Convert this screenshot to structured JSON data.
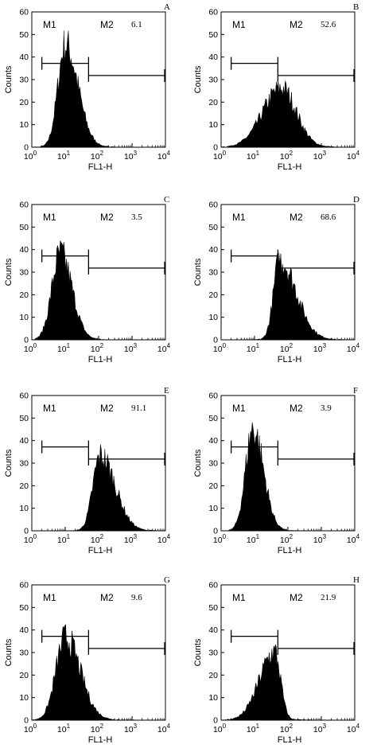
{
  "chart_data": [
    {
      "type": "area",
      "panel": "A",
      "ylabel": "Counts",
      "xlabel": "FL1-H",
      "xscale": "log",
      "xlim": [
        1,
        10000
      ],
      "ylim": [
        0,
        60
      ],
      "xticks": [
        "10",
        "10",
        "10",
        "10",
        "10"
      ],
      "xtick_exponents": [
        "0",
        "1",
        "2",
        "3",
        "4"
      ],
      "yticks": [
        "0",
        "10",
        "20",
        "30",
        "40",
        "50",
        "60"
      ],
      "gates": [
        {
          "name": "M1",
          "range": [
            2,
            50
          ]
        },
        {
          "name": "M2",
          "range": [
            50,
            10000
          ],
          "value": "6.1"
        }
      ],
      "histogram": {
        "center_log": 1.0,
        "sigma_left": 0.22,
        "sigma_right": 0.38,
        "peak": 45,
        "tail": 0.2
      }
    },
    {
      "type": "area",
      "panel": "B",
      "ylabel": "Counts",
      "xlabel": "FL1-H",
      "xscale": "log",
      "xlim": [
        1,
        10000
      ],
      "ylim": [
        0,
        60
      ],
      "xticks": [
        "10",
        "10",
        "10",
        "10",
        "10"
      ],
      "xtick_exponents": [
        "0",
        "1",
        "2",
        "3",
        "4"
      ],
      "yticks": [
        "0",
        "10",
        "20",
        "30",
        "40",
        "50",
        "60"
      ],
      "gates": [
        {
          "name": "M1",
          "range": [
            2,
            50
          ]
        },
        {
          "name": "M2",
          "range": [
            50,
            10000
          ],
          "value": "52.6"
        }
      ],
      "histogram": {
        "center_log": 1.8,
        "sigma_left": 0.55,
        "sigma_right": 0.45,
        "peak": 26,
        "tail": 0.15
      }
    },
    {
      "type": "area",
      "panel": "C",
      "ylabel": "Counts",
      "xlabel": "FL1-H",
      "xscale": "log",
      "xlim": [
        1,
        10000
      ],
      "ylim": [
        0,
        60
      ],
      "xticks": [
        "10",
        "10",
        "10",
        "10",
        "10"
      ],
      "xtick_exponents": [
        "0",
        "1",
        "2",
        "3",
        "4"
      ],
      "yticks": [
        "0",
        "10",
        "20",
        "30",
        "40",
        "50",
        "60"
      ],
      "gates": [
        {
          "name": "M1",
          "range": [
            2,
            50
          ]
        },
        {
          "name": "M2",
          "range": [
            50,
            10000
          ],
          "value": "3.5"
        }
      ],
      "histogram": {
        "center_log": 0.85,
        "sigma_left": 0.25,
        "sigma_right": 0.35,
        "peak": 38,
        "tail": 0.15
      }
    },
    {
      "type": "area",
      "panel": "D",
      "ylabel": "Counts",
      "xlabel": "FL1-H",
      "xscale": "log",
      "xlim": [
        1,
        10000
      ],
      "ylim": [
        0,
        60
      ],
      "xticks": [
        "10",
        "10",
        "10",
        "10",
        "10"
      ],
      "xtick_exponents": [
        "0",
        "1",
        "2",
        "3",
        "4"
      ],
      "yticks": [
        "0",
        "10",
        "20",
        "30",
        "40",
        "50",
        "60"
      ],
      "gates": [
        {
          "name": "M1",
          "range": [
            2,
            50
          ]
        },
        {
          "name": "M2",
          "range": [
            50,
            10000
          ],
          "value": "68.6"
        }
      ],
      "histogram": {
        "center_log": 1.75,
        "sigma_left": 0.18,
        "sigma_right": 0.5,
        "peak": 35,
        "tail": 0.2
      }
    },
    {
      "type": "area",
      "panel": "E",
      "ylabel": "Counts",
      "xlabel": "FL1-H",
      "xscale": "log",
      "xlim": [
        1,
        10000
      ],
      "ylim": [
        0,
        60
      ],
      "xticks": [
        "10",
        "10",
        "10",
        "10",
        "10"
      ],
      "xtick_exponents": [
        "0",
        "1",
        "2",
        "3",
        "4"
      ],
      "yticks": [
        "0",
        "10",
        "20",
        "30",
        "40",
        "50",
        "60"
      ],
      "gates": [
        {
          "name": "M1",
          "range": [
            2,
            50
          ]
        },
        {
          "name": "M2",
          "range": [
            50,
            10000
          ],
          "value": "91.1"
        }
      ],
      "histogram": {
        "center_log": 2.05,
        "sigma_left": 0.22,
        "sigma_right": 0.45,
        "peak": 33,
        "tail": 0.1
      }
    },
    {
      "type": "area",
      "panel": "F",
      "ylabel": "Counts",
      "xlabel": "FL1-H",
      "xscale": "log",
      "xlim": [
        1,
        10000
      ],
      "ylim": [
        0,
        60
      ],
      "xticks": [
        "10",
        "10",
        "10",
        "10",
        "10"
      ],
      "xtick_exponents": [
        "0",
        "1",
        "2",
        "3",
        "4"
      ],
      "yticks": [
        "0",
        "10",
        "20",
        "30",
        "40",
        "50",
        "60"
      ],
      "gates": [
        {
          "name": "M1",
          "range": [
            2,
            50
          ]
        },
        {
          "name": "M2",
          "range": [
            50,
            10000
          ],
          "value": "3.9"
        }
      ],
      "histogram": {
        "center_log": 0.95,
        "sigma_left": 0.22,
        "sigma_right": 0.32,
        "peak": 45,
        "tail": 0.1
      }
    },
    {
      "type": "area",
      "panel": "G",
      "ylabel": "Counts",
      "xlabel": "FL1-H",
      "xscale": "log",
      "xlim": [
        1,
        10000
      ],
      "ylim": [
        0,
        60
      ],
      "xticks": [
        "10",
        "10",
        "10",
        "10",
        "10"
      ],
      "xtick_exponents": [
        "0",
        "1",
        "2",
        "3",
        "4"
      ],
      "yticks": [
        "0",
        "10",
        "20",
        "30",
        "40",
        "50",
        "60"
      ],
      "gates": [
        {
          "name": "M1",
          "range": [
            2,
            50
          ]
        },
        {
          "name": "M2",
          "range": [
            50,
            10000
          ],
          "value": "9.6"
        }
      ],
      "histogram": {
        "center_log": 1.0,
        "sigma_left": 0.28,
        "sigma_right": 0.45,
        "peak": 36,
        "tail": 0.3
      }
    },
    {
      "type": "area",
      "panel": "H",
      "ylabel": "Counts",
      "xlabel": "FL1-H",
      "xscale": "log",
      "xlim": [
        1,
        10000
      ],
      "ylim": [
        0,
        60
      ],
      "xticks": [
        "10",
        "10",
        "10",
        "10",
        "10"
      ],
      "xtick_exponents": [
        "0",
        "1",
        "2",
        "3",
        "4"
      ],
      "yticks": [
        "0",
        "10",
        "20",
        "30",
        "40",
        "50",
        "60"
      ],
      "gates": [
        {
          "name": "M1",
          "range": [
            2,
            50
          ]
        },
        {
          "name": "M2",
          "range": [
            50,
            10000
          ],
          "value": "21.9"
        }
      ],
      "histogram": {
        "center_log": 1.6,
        "sigma_left": 0.45,
        "sigma_right": 0.18,
        "peak": 30,
        "tail": 0.15
      }
    }
  ]
}
